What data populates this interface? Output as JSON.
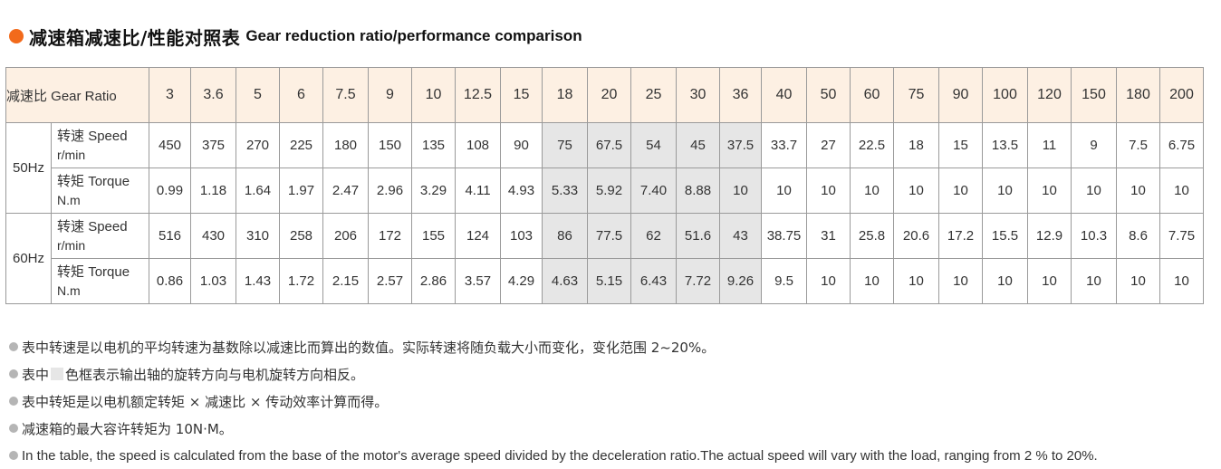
{
  "title": {
    "cn": "减速箱减速比/性能对照表",
    "en": "Gear reduction ratio/performance comparison"
  },
  "colors": {
    "accent_dot": "#f26a1b",
    "header_bg": "#fdf0e3",
    "highlight": "#e6e6e6"
  },
  "table": {
    "header_label": "减速比 Gear Ratio",
    "ratios": [
      "3",
      "3.6",
      "5",
      "6",
      "7.5",
      "9",
      "10",
      "12.5",
      "15",
      "18",
      "20",
      "25",
      "30",
      "36",
      "40",
      "50",
      "60",
      "75",
      "90",
      "100",
      "120",
      "150",
      "180",
      "200"
    ],
    "highlight_ratios": [
      "18",
      "20",
      "25",
      "30",
      "36"
    ],
    "groups": [
      {
        "freq": "50Hz",
        "rows": [
          {
            "name_cn": "转速",
            "name_en": "Speed",
            "unit": "r/min",
            "values": [
              "450",
              "375",
              "270",
              "225",
              "180",
              "150",
              "135",
              "108",
              "90",
              "75",
              "67.5",
              "54",
              "45",
              "37.5",
              "33.7",
              "27",
              "22.5",
              "18",
              "15",
              "13.5",
              "11",
              "9",
              "7.5",
              "6.75"
            ]
          },
          {
            "name_cn": "转矩",
            "name_en": "Torque",
            "unit": "N.m",
            "values": [
              "0.99",
              "1.18",
              "1.64",
              "1.97",
              "2.47",
              "2.96",
              "3.29",
              "4.11",
              "4.93",
              "5.33",
              "5.92",
              "7.40",
              "8.88",
              "10",
              "10",
              "10",
              "10",
              "10",
              "10",
              "10",
              "10",
              "10",
              "10",
              "10"
            ]
          }
        ]
      },
      {
        "freq": "60Hz",
        "rows": [
          {
            "name_cn": "转速",
            "name_en": "Speed",
            "unit": "r/min",
            "values": [
              "516",
              "430",
              "310",
              "258",
              "206",
              "172",
              "155",
              "124",
              "103",
              "86",
              "77.5",
              "62",
              "51.6",
              "43",
              "38.75",
              "31",
              "25.8",
              "20.6",
              "17.2",
              "15.5",
              "12.9",
              "10.3",
              "8.6",
              "7.75"
            ]
          },
          {
            "name_cn": "转矩",
            "name_en": "Torque",
            "unit": "N.m",
            "values": [
              "0.86",
              "1.03",
              "1.43",
              "1.72",
              "2.15",
              "2.57",
              "2.86",
              "3.57",
              "4.29",
              "4.63",
              "5.15",
              "6.43",
              "7.72",
              "9.26",
              "9.5",
              "10",
              "10",
              "10",
              "10",
              "10",
              "10",
              "10",
              "10",
              "10"
            ]
          }
        ]
      }
    ]
  },
  "notes": {
    "n1": "表中转速是以电机的平均转速为基数除以减速比而算出的数值。实际转速将随负载大小而变化，变化范围 2~20%。",
    "n2_pre": "表中",
    "n2_post": "色框表示输出轴的旋转方向与电机旋转方向相反。",
    "n3": "表中转矩是以电机额定转矩 × 减速比 × 传动效率计算而得。",
    "n4": "减速箱的最大容许转矩为 10N·M。",
    "n5": "In the table, the speed is calculated from the base of the motor's average speed divided by the deceleration ratio.The actual speed will vary with the load, ranging from 2 % to 20%."
  }
}
